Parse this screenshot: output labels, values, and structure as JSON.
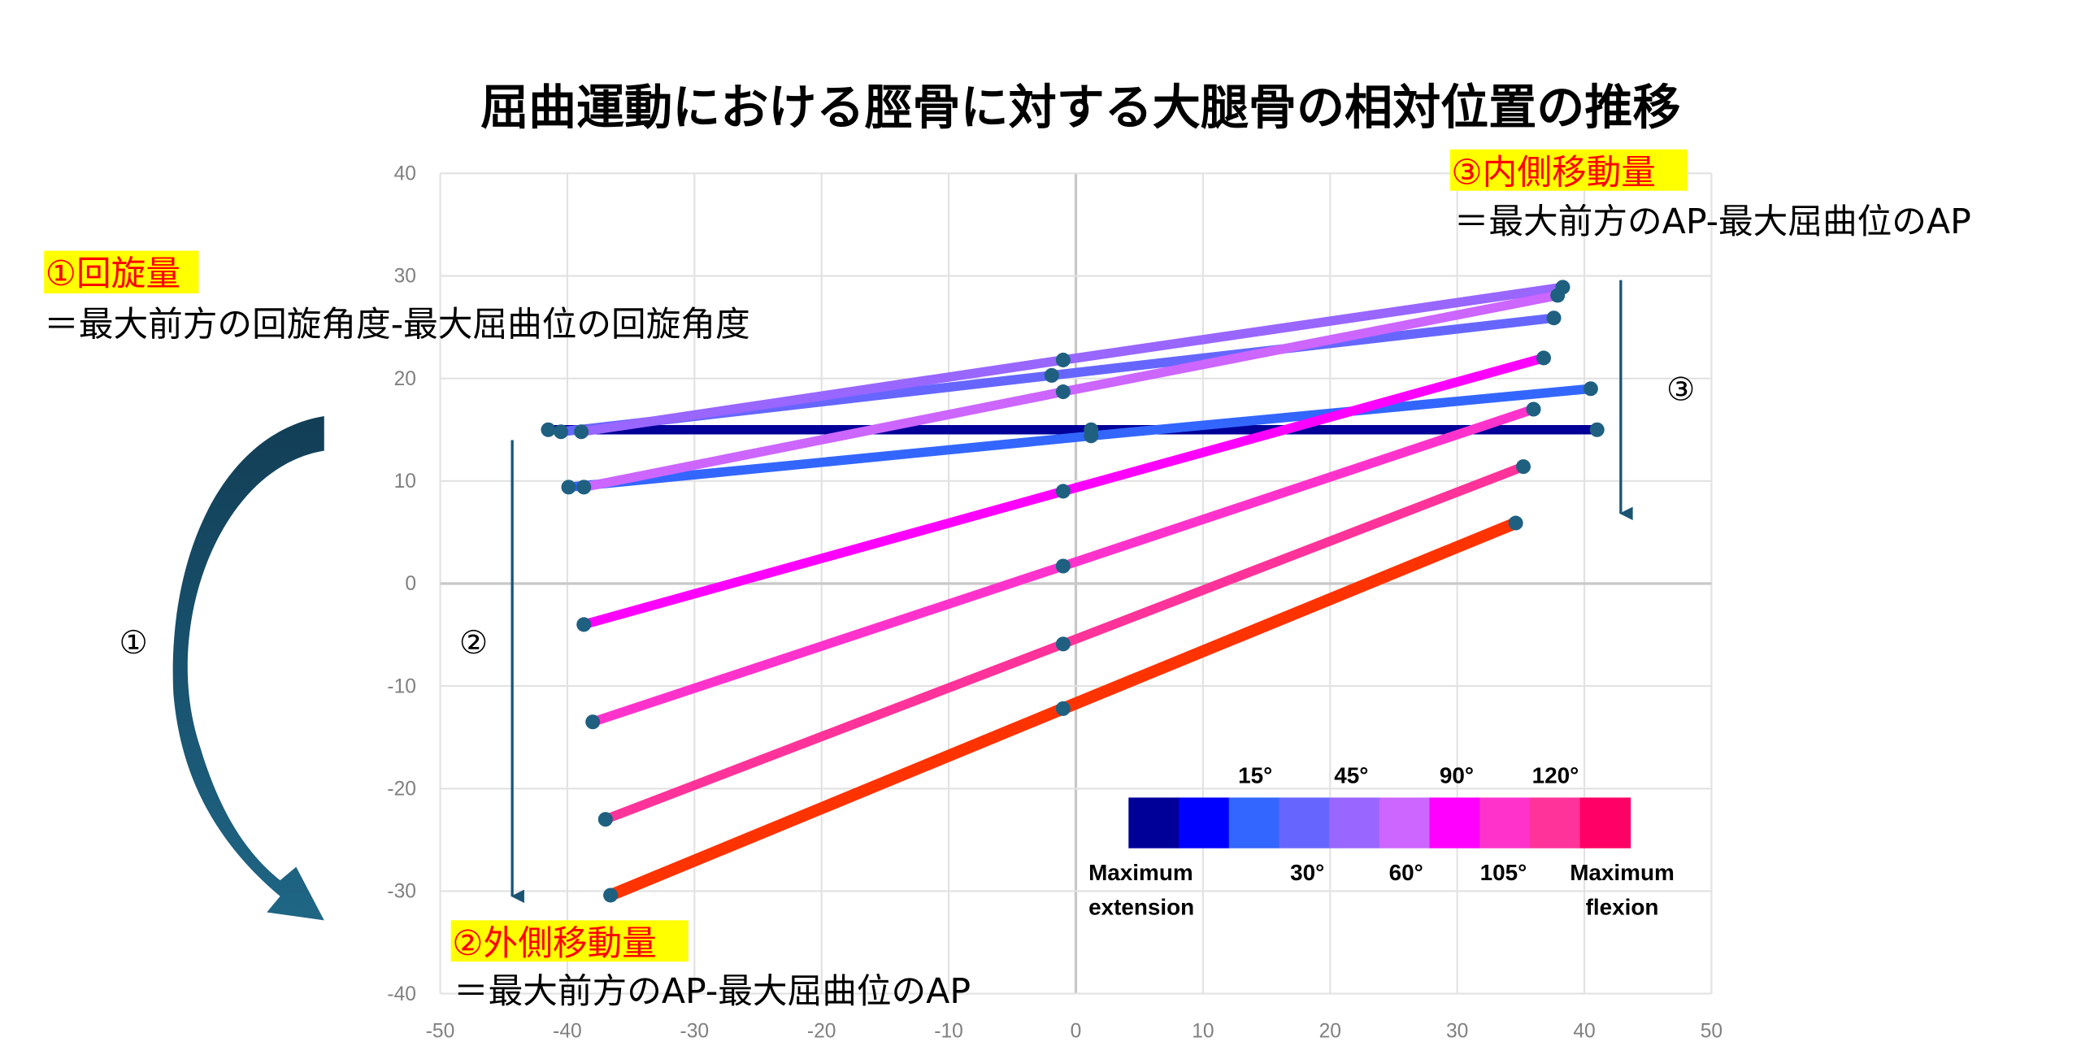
{
  "chart_data": {
    "type": "line",
    "title": "屈曲運動における脛骨に対する大腿骨の相対位置の推移",
    "xlabel": "",
    "ylabel": "",
    "xlim": [
      -50,
      50
    ],
    "ylim": [
      -40,
      40
    ],
    "xticks": [
      -50,
      -40,
      -30,
      -20,
      -10,
      0,
      10,
      20,
      30,
      40,
      50
    ],
    "yticks": [
      -40,
      -30,
      -20,
      -10,
      0,
      10,
      20,
      30,
      40
    ],
    "grid": true,
    "marker_color": "#1f6080",
    "series": [
      {
        "color": "#000099",
        "points": [
          [
            -41.5,
            15
          ],
          [
            1.2,
            15
          ],
          [
            41,
            15
          ]
        ]
      },
      {
        "color": "#3366ff",
        "points": [
          [
            -39.9,
            9.4
          ],
          [
            1.2,
            14.4
          ],
          [
            40.5,
            19
          ]
        ]
      },
      {
        "color": "#6666ff",
        "points": [
          [
            -40.5,
            14.8
          ],
          [
            -1.9,
            20.3
          ],
          [
            37.6,
            25.9
          ]
        ]
      },
      {
        "color": "#9966ff",
        "points": [
          [
            -38.9,
            14.8
          ],
          [
            -1,
            21.8
          ],
          [
            38.3,
            28.9
          ]
        ]
      },
      {
        "color": "#cc66ff",
        "points": [
          [
            -38.7,
            9.4
          ],
          [
            -1,
            18.7
          ],
          [
            37.9,
            28.1
          ]
        ]
      },
      {
        "color": "#ff00ff",
        "points": [
          [
            -38.7,
            -4
          ],
          [
            -1,
            9
          ],
          [
            36.8,
            22
          ]
        ]
      },
      {
        "color": "#ff33cc",
        "points": [
          [
            -38,
            -13.5
          ],
          [
            -1,
            1.7
          ],
          [
            36,
            17
          ]
        ]
      },
      {
        "color": "#ff3399",
        "points": [
          [
            -37,
            -23
          ],
          [
            -1,
            -5.9
          ],
          [
            35.2,
            11.4
          ]
        ]
      },
      {
        "color": "#ff3300",
        "points": [
          [
            -36.6,
            -30.4
          ],
          [
            -1,
            -12.2
          ],
          [
            34.6,
            5.9
          ]
        ]
      }
    ],
    "legend": {
      "placement": "bottom-right",
      "swatches": [
        "#000099",
        "#0000ff",
        "#3366ff",
        "#6666ff",
        "#9966ff",
        "#cc66ff",
        "#ff00ff",
        "#ff33cc",
        "#ff3399",
        "#ff0066"
      ],
      "top_labels": [
        "15°",
        "45°",
        "90°",
        "120°"
      ],
      "bottom_labels": [
        "30°",
        "60°",
        "105°"
      ],
      "start_label": [
        "Maximum",
        "extension"
      ],
      "end_label": [
        "Maximum",
        "flexion"
      ]
    }
  },
  "annotations": {
    "rotation": {
      "heading": "①回旋量",
      "formula": "＝最大前方の回旋角度-最大屈曲位の回旋角度",
      "marker": "①"
    },
    "lateral": {
      "heading": "②外側移動量",
      "formula": "＝最大前方のAP-最大屈曲位のAP",
      "marker": "②"
    },
    "medial": {
      "heading": "③内側移動量",
      "formula": "＝最大前方のAP-最大屈曲位のAP",
      "marker": "③"
    },
    "highlight_color": "#ffff00",
    "heading_color": "#ff0000",
    "arrow_color": "#1b5472"
  }
}
